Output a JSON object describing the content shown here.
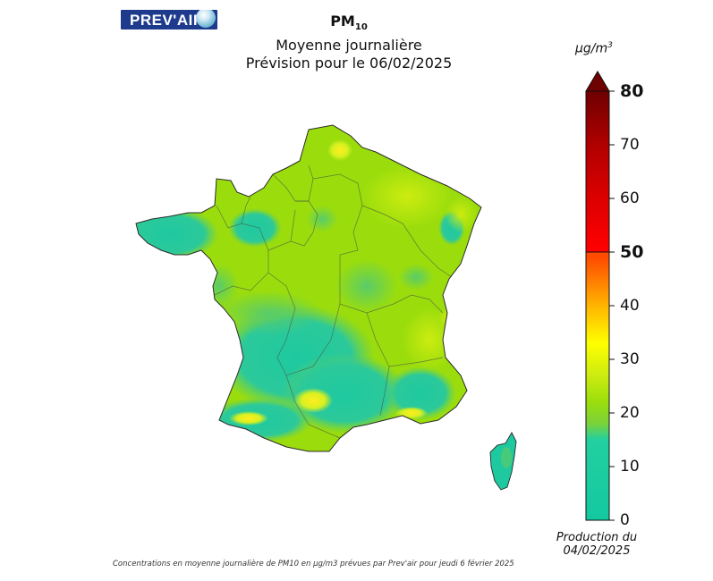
{
  "logo": {
    "text": "PREV'AIR",
    "glyph_word": "globe-icon"
  },
  "title": {
    "pollutant": "PM",
    "pollutant_sub": "10",
    "line2": "Moyenne journalière",
    "line3": "Prévision pour le 06/02/2025"
  },
  "colorbar": {
    "unit_prefix": "µg/m",
    "unit_sup": "3",
    "ticks": [
      {
        "value": 0,
        "label": "0"
      },
      {
        "value": 10,
        "label": "10"
      },
      {
        "value": 20,
        "label": "20"
      },
      {
        "value": 30,
        "label": "30"
      },
      {
        "value": 40,
        "label": "40"
      },
      {
        "value": 50,
        "label": "50"
      },
      {
        "value": 60,
        "label": "60"
      },
      {
        "value": 70,
        "label": "70"
      },
      {
        "value": 80,
        "label": "80"
      }
    ],
    "range": [
      0,
      80
    ],
    "threshold": 50,
    "colors": {
      "c0": "#14c8a0",
      "c15": "#22d0a0",
      "c18": "#7ad23a",
      "c22": "#9bdd0c",
      "c27": "#ccec10",
      "c33": "#ffff00",
      "c40": "#ffb400",
      "c49": "#ff4a00",
      "c50": "#ff0000",
      "c60": "#dd0000",
      "c70": "#b00000",
      "c80": "#6e0000"
    }
  },
  "production": {
    "line1": "Production du",
    "line2": "04/02/2025"
  },
  "caption": "Concentrations en moyenne journalière de PM10 en µg/m3 prévues par Prev'air pour jeudi 6 février 2025",
  "map": {
    "region": "France",
    "base_color": "#9bdd0c",
    "low_color": "#1ec9a0",
    "mid_color": "#59cc69",
    "high_color": "#ffee20"
  }
}
